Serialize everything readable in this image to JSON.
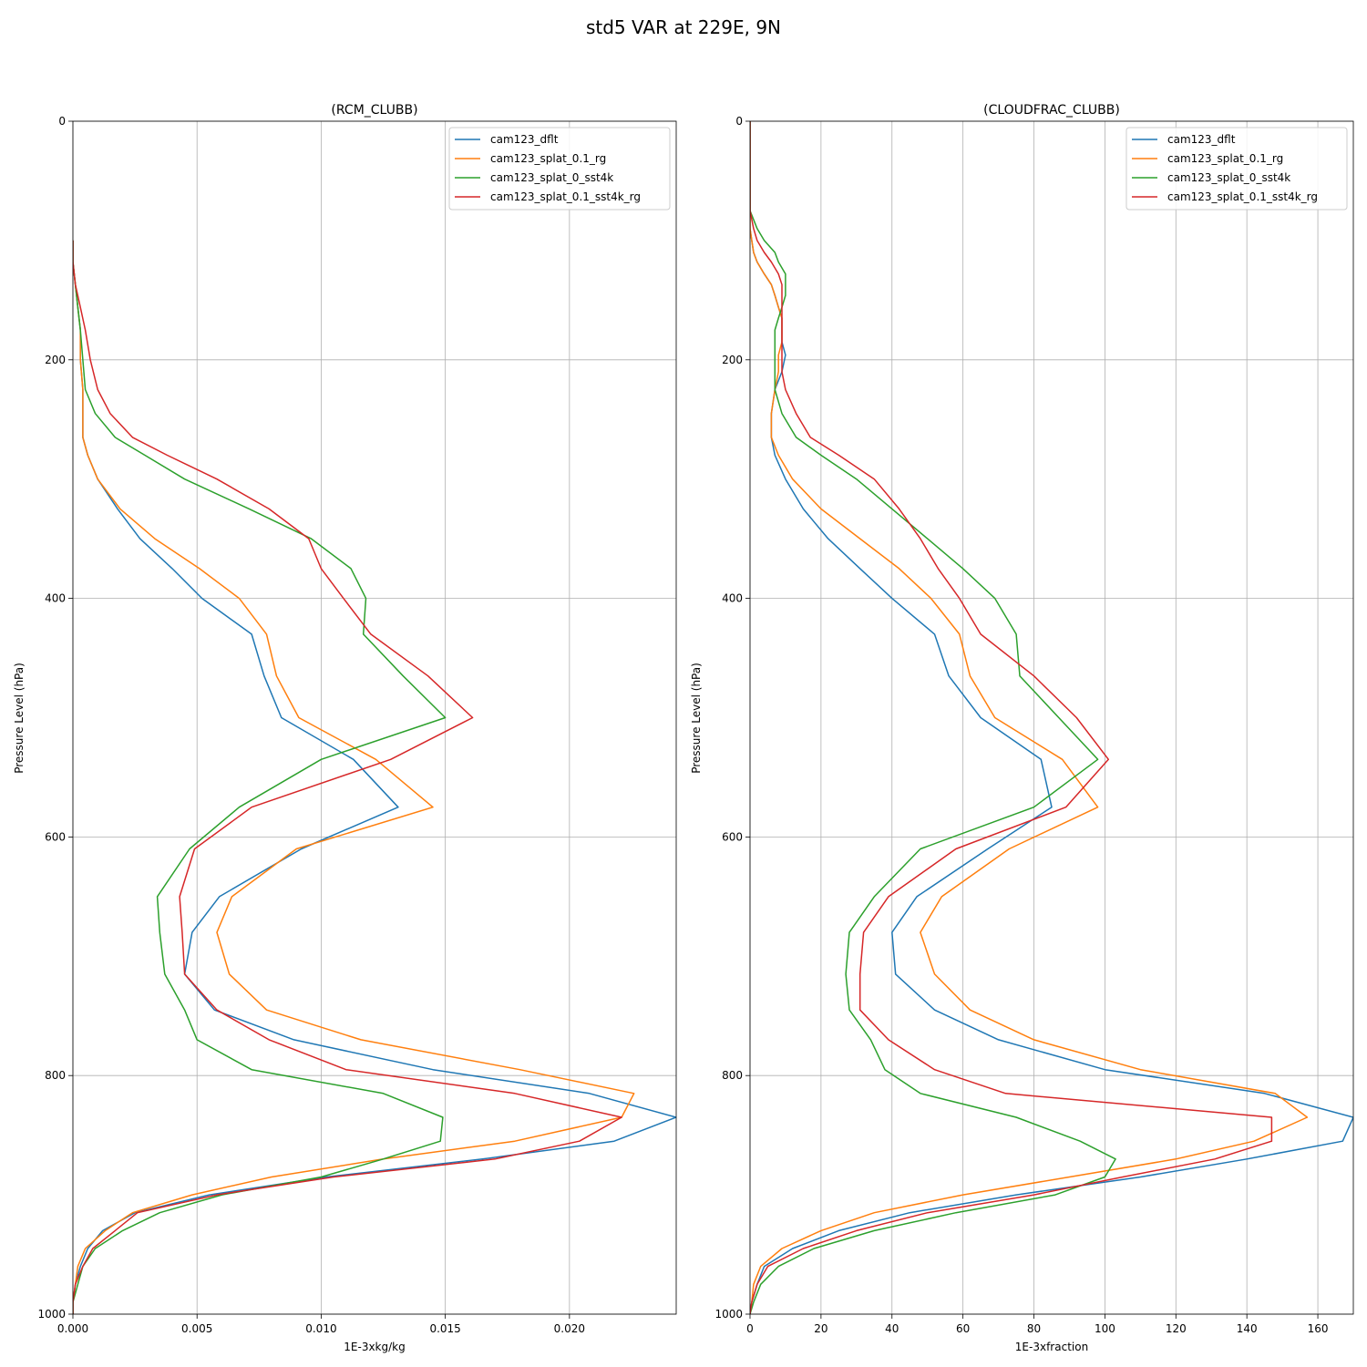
{
  "figure_title": "std5 VAR at 229E, 9N",
  "chart_data": [
    {
      "type": "line",
      "title": "(RCM_CLUBB)",
      "xlabel": "1E-3xkg/kg",
      "ylabel": "Pressure Level (hPa)",
      "xlim": [
        0,
        0.0243
      ],
      "ylim": [
        1000,
        0
      ],
      "y_inverted": true,
      "grid": true,
      "legend": "top-right",
      "xticks": [
        "0.000",
        "0.005",
        "0.010",
        "0.015",
        "0.020"
      ],
      "xtick_values": [
        0,
        0.005,
        0.01,
        0.015,
        0.02
      ],
      "yticks": [
        "0",
        "200",
        "400",
        "600",
        "800",
        "1000"
      ],
      "ytick_values": [
        0,
        200,
        400,
        600,
        800,
        1000
      ],
      "y": [
        100,
        118,
        137,
        156,
        175,
        200,
        225,
        245,
        265,
        280,
        300,
        325,
        350,
        375,
        400,
        430,
        465,
        500,
        535,
        575,
        610,
        650,
        680,
        715,
        745,
        770,
        795,
        815,
        835,
        855,
        870,
        885,
        900,
        915,
        930,
        945,
        960,
        975,
        990,
        1000
      ],
      "series": [
        {
          "name": "cam123_dflt",
          "color": "#1f77b4",
          "values": [
            0,
            0,
            0.0001,
            0.0002,
            0.0003,
            0.0003,
            0.0004,
            0.0004,
            0.0004,
            0.0006,
            0.001,
            0.0018,
            0.0027,
            0.004,
            0.0052,
            0.0072,
            0.0077,
            0.0084,
            0.0113,
            0.0131,
            0.0092,
            0.0059,
            0.0048,
            0.0045,
            0.0057,
            0.0089,
            0.0145,
            0.0208,
            0.0243,
            0.0218,
            0.0165,
            0.0102,
            0.0055,
            0.0025,
            0.0012,
            0.0006,
            0.0003,
            0.0001,
            0,
            0
          ]
        },
        {
          "name": "cam123_splat_0.1_rg",
          "color": "#ff7f0e",
          "values": [
            0,
            0,
            0.0001,
            0.0002,
            0.0003,
            0.0003,
            0.0004,
            0.0004,
            0.0004,
            0.0006,
            0.001,
            0.0019,
            0.0033,
            0.0051,
            0.0067,
            0.0078,
            0.0082,
            0.0091,
            0.0122,
            0.0145,
            0.009,
            0.0064,
            0.0058,
            0.0063,
            0.0078,
            0.0116,
            0.018,
            0.0226,
            0.0221,
            0.0178,
            0.0125,
            0.008,
            0.0048,
            0.0024,
            0.0013,
            0.0005,
            0.0002,
            0.0001,
            0,
            0
          ]
        },
        {
          "name": "cam123_splat_0_sst4k",
          "color": "#2ca02c",
          "values": [
            0,
            0,
            0.0001,
            0.0002,
            0.0003,
            0.0004,
            0.0005,
            0.0009,
            0.0017,
            0.0029,
            0.0045,
            0.0071,
            0.0096,
            0.0112,
            0.0118,
            0.0117,
            0.0133,
            0.015,
            0.01,
            0.0067,
            0.0047,
            0.0034,
            0.0035,
            0.0037,
            0.0045,
            0.005,
            0.0072,
            0.0125,
            0.0149,
            0.0148,
            0.0125,
            0.01,
            0.006,
            0.0035,
            0.002,
            0.0009,
            0.0004,
            0.0002,
            0,
            0
          ]
        },
        {
          "name": "cam123_splat_0.1_sst4k_rg",
          "color": "#d62728",
          "values": [
            0,
            0,
            0.0001,
            0.0003,
            0.0005,
            0.0007,
            0.001,
            0.0015,
            0.0024,
            0.0038,
            0.0058,
            0.0079,
            0.0095,
            0.01,
            0.0109,
            0.012,
            0.0143,
            0.0161,
            0.0128,
            0.0072,
            0.0049,
            0.0043,
            0.0044,
            0.0045,
            0.0058,
            0.0079,
            0.011,
            0.0178,
            0.0221,
            0.0204,
            0.017,
            0.0105,
            0.0058,
            0.0026,
            0.0017,
            0.0008,
            0.0004,
            0.0001,
            0,
            0
          ]
        }
      ]
    },
    {
      "type": "line",
      "title": "(CLOUDFRAC_CLUBB)",
      "xlabel": "1E-3xfraction",
      "ylabel": "Pressure Level (hPa)",
      "xlim": [
        0,
        170
      ],
      "ylim": [
        1000,
        0
      ],
      "y_inverted": true,
      "grid": true,
      "legend": "top-right",
      "xticks": [
        "0",
        "20",
        "40",
        "60",
        "80",
        "100",
        "120",
        "140",
        "160"
      ],
      "xtick_values": [
        0,
        20,
        40,
        60,
        80,
        100,
        120,
        140,
        160
      ],
      "yticks": [
        "0",
        "200",
        "400",
        "600",
        "800",
        "1000"
      ],
      "ytick_values": [
        0,
        200,
        400,
        600,
        800,
        1000
      ],
      "y": [
        0,
        75,
        90,
        100,
        110,
        118,
        128,
        137,
        146,
        156,
        165,
        175,
        185,
        196,
        210,
        225,
        245,
        265,
        280,
        300,
        325,
        350,
        375,
        400,
        430,
        465,
        500,
        535,
        575,
        610,
        650,
        680,
        715,
        745,
        770,
        795,
        815,
        835,
        855,
        870,
        885,
        900,
        915,
        930,
        945,
        960,
        975,
        990,
        1000
      ],
      "series": [
        {
          "name": "cam123_dflt",
          "color": "#1f77b4",
          "values": [
            0,
            0,
            0,
            0.5,
            1,
            2,
            4,
            6,
            7,
            8,
            9,
            9,
            9,
            10,
            9,
            7,
            6,
            6,
            7,
            10,
            15,
            22,
            31,
            40,
            52,
            56,
            65,
            82,
            85,
            67,
            47,
            40,
            41,
            52,
            70,
            100,
            145,
            170,
            167,
            140,
            110,
            75,
            45,
            25,
            12,
            4,
            2,
            0.5,
            0
          ]
        },
        {
          "name": "cam123_splat_0.1_rg",
          "color": "#ff7f0e",
          "values": [
            0,
            0,
            0,
            0.5,
            1,
            2,
            4,
            6,
            7,
            8,
            9,
            9,
            9,
            8,
            8,
            7,
            6,
            6,
            8,
            12,
            20,
            31,
            42,
            51,
            59,
            62,
            69,
            88,
            98,
            73,
            54,
            48,
            52,
            62,
            80,
            110,
            148,
            157,
            142,
            120,
            90,
            60,
            35,
            20,
            9,
            3,
            1,
            0.5,
            0
          ]
        },
        {
          "name": "cam123_splat_0_sst4k",
          "color": "#2ca02c",
          "values": [
            0,
            0,
            2,
            4,
            7,
            8,
            10,
            10,
            10,
            9,
            8,
            7,
            7,
            7,
            7,
            7,
            9,
            13,
            20,
            30,
            40,
            50,
            60,
            69,
            75,
            76,
            87,
            98,
            80,
            48,
            35,
            28,
            27,
            28,
            34,
            38,
            48,
            75,
            93,
            103,
            100,
            86,
            58,
            35,
            18,
            8,
            3,
            1,
            0
          ]
        },
        {
          "name": "cam123_splat_0.1_sst4k_rg",
          "color": "#d62728",
          "values": [
            0,
            0,
            1,
            2,
            4,
            6,
            8,
            9,
            9,
            9,
            9,
            9,
            9,
            9,
            9,
            10,
            13,
            17,
            25,
            35,
            42,
            48,
            53,
            59,
            65,
            80,
            92,
            101,
            89,
            58,
            39,
            32,
            31,
            31,
            39,
            52,
            72,
            147,
            147,
            131,
            105,
            80,
            50,
            30,
            15,
            5,
            2,
            0.5,
            0
          ]
        }
      ]
    }
  ]
}
